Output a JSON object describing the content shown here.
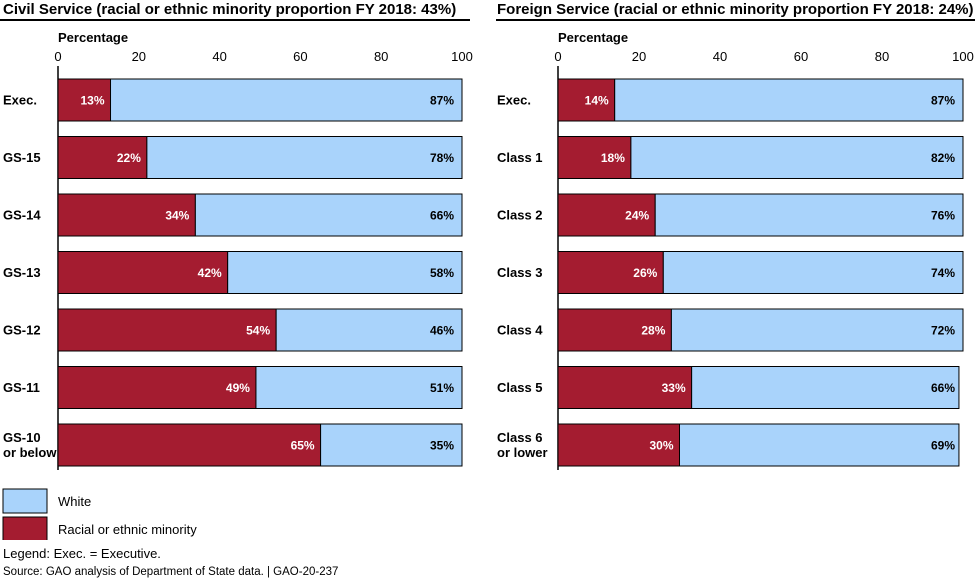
{
  "colors": {
    "white": "#a9d3fb",
    "minority": "#a41c30",
    "outline": "#000000"
  },
  "chart_data": [
    {
      "type": "bar",
      "orientation": "horizontal",
      "stacked": true,
      "title": "Civil Service (racial or ethnic minority proportion FY 2018: 43%)",
      "xlabel": "Percentage",
      "xlim": [
        0,
        100
      ],
      "xticks": [
        0,
        20,
        40,
        60,
        80,
        100
      ],
      "categories": [
        [
          "Exec."
        ],
        [
          "GS-15"
        ],
        [
          "GS-14"
        ],
        [
          "GS-13"
        ],
        [
          "GS-12"
        ],
        [
          "GS-11"
        ],
        [
          "GS-10",
          "or below"
        ]
      ],
      "series": [
        {
          "name": "Racial or ethnic minority",
          "values": [
            13,
            22,
            34,
            42,
            54,
            49,
            65
          ],
          "labels": [
            "13%",
            "22%",
            "34%",
            "42%",
            "54%",
            "49%",
            "65%"
          ]
        },
        {
          "name": "White",
          "values": [
            87,
            78,
            66,
            58,
            46,
            51,
            35
          ],
          "labels": [
            "87%",
            "78%",
            "66%",
            "58%",
            "46%",
            "51%",
            "35%"
          ]
        }
      ]
    },
    {
      "type": "bar",
      "orientation": "horizontal",
      "stacked": true,
      "title": "Foreign Service (racial or ethnic minority proportion FY 2018: 24%)",
      "xlabel": "Percentage",
      "xlim": [
        0,
        100
      ],
      "xticks": [
        0,
        20,
        40,
        60,
        80,
        100
      ],
      "categories": [
        [
          "Exec."
        ],
        [
          "Class 1"
        ],
        [
          "Class 2"
        ],
        [
          "Class 3"
        ],
        [
          "Class 4"
        ],
        [
          "Class 5"
        ],
        [
          "Class 6",
          "or lower"
        ]
      ],
      "series": [
        {
          "name": "Racial or ethnic minority",
          "values": [
            14,
            18,
            24,
            26,
            28,
            33,
            30
          ],
          "labels": [
            "14%",
            "18%",
            "24%",
            "26%",
            "28%",
            "33%",
            "30%"
          ]
        },
        {
          "name": "White",
          "values": [
            87,
            82,
            76,
            74,
            72,
            66,
            69
          ],
          "labels": [
            "87%",
            "82%",
            "76%",
            "74%",
            "72%",
            "66%",
            "69%"
          ]
        }
      ]
    }
  ],
  "legend": [
    {
      "label": "White",
      "color": "#a9d3fb"
    },
    {
      "label": "Racial or ethnic minority",
      "color": "#a41c30"
    }
  ],
  "notes": {
    "legend_note": "Legend: Exec. = Executive.",
    "source": "Source: GAO analysis of Department of State data.  |  GAO-20-237"
  }
}
